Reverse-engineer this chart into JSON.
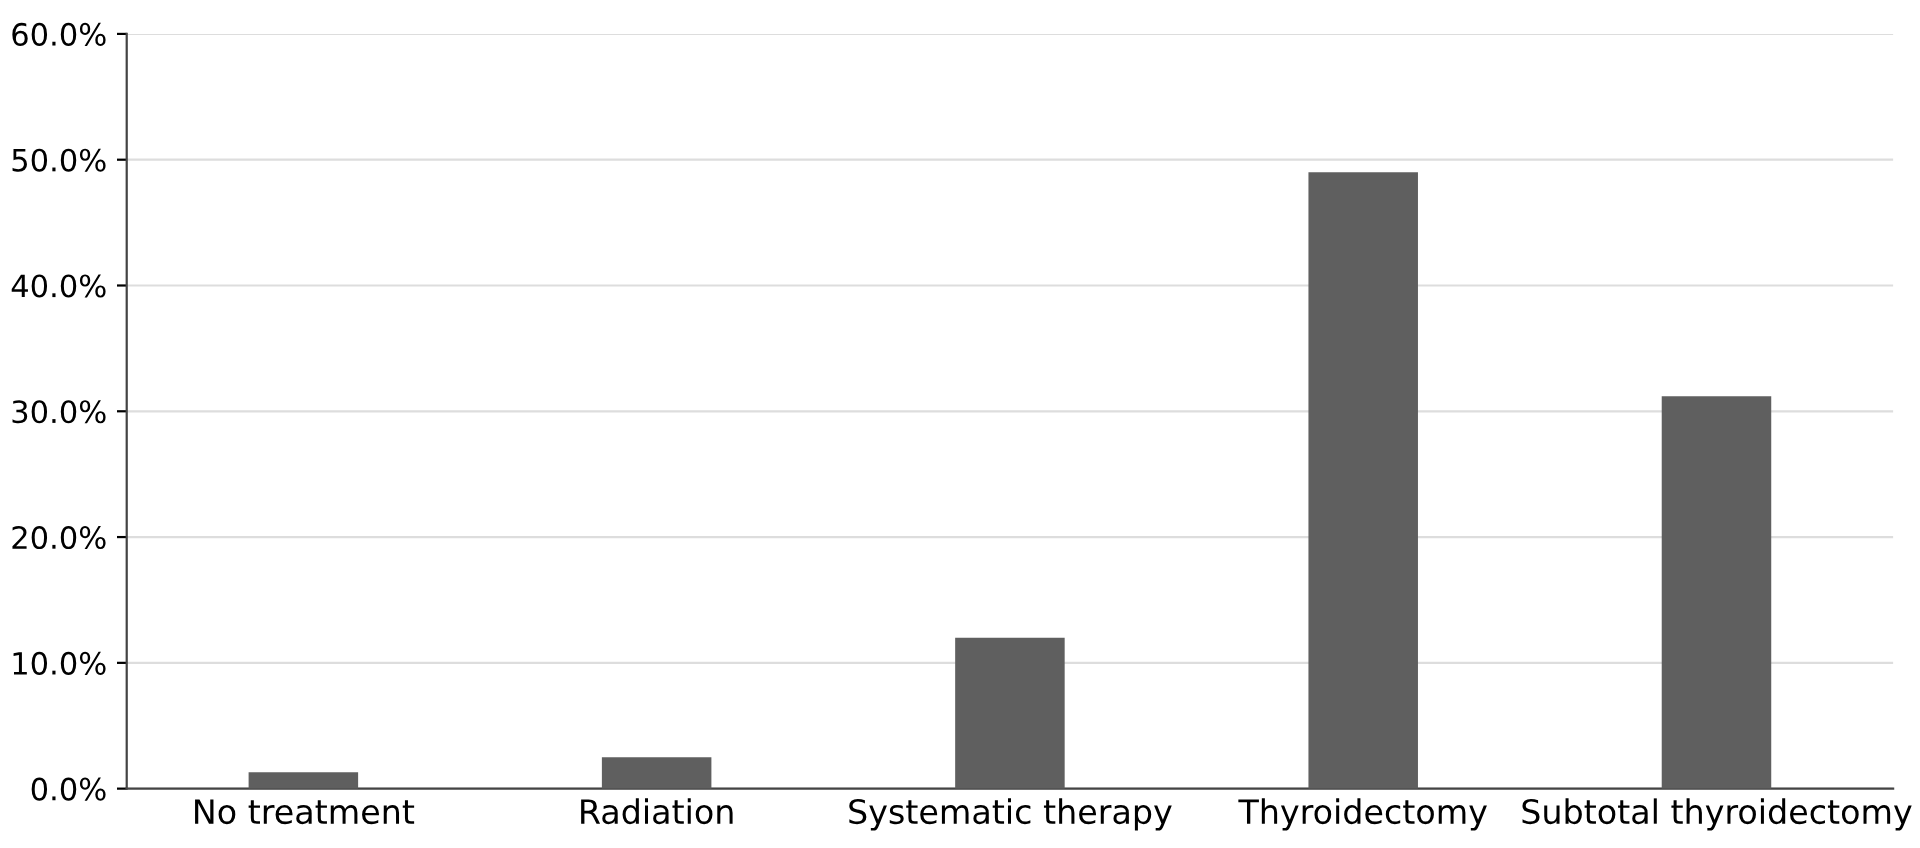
{
  "chart_data": {
    "type": "bar",
    "categories": [
      "No treatment",
      "Radiation",
      "Systematic therapy",
      "Thyroidectomy",
      "Subtotal thyroidectomy"
    ],
    "values": [
      1.3,
      2.5,
      12.0,
      49.0,
      31.2
    ],
    "color": "#5f5f5f",
    "ylim": [
      0,
      60
    ],
    "yticks": [
      {
        "value": 0,
        "label": "0.0%"
      },
      {
        "value": 10,
        "label": "10.0%"
      },
      {
        "value": 20,
        "label": "20.0%"
      },
      {
        "value": 30,
        "label": "30.0%"
      },
      {
        "value": 40,
        "label": "40.0%"
      },
      {
        "value": 50,
        "label": "50.0%"
      },
      {
        "value": 60,
        "label": "60.0%"
      }
    ],
    "grid": "y"
  }
}
